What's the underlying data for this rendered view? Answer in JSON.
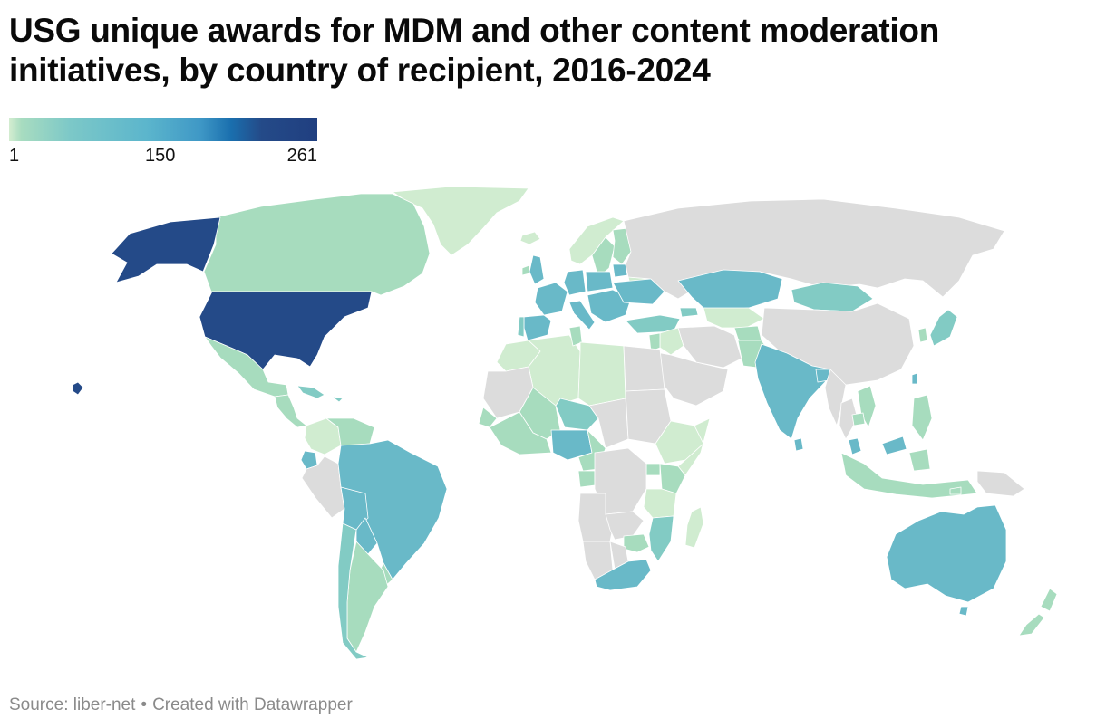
{
  "chart_data": {
    "type": "choropleth",
    "title": "USG unique awards for MDM and other content moderation initiatives, by country of recipient, 2016-2024",
    "legend": {
      "min": "1",
      "mid": "150",
      "max": "261",
      "min_value": 1,
      "mid_value": 150,
      "max_value": 261
    },
    "colors": {
      "no_data": "#dcdcdc",
      "very_low": "#d0ecd0",
      "low": "#a7dcbe",
      "low_mid": "#82cbc4",
      "mid": "#69b9c8",
      "high": "#244a88"
    },
    "regions": [
      {
        "name": "United States",
        "level": "high"
      },
      {
        "name": "Alaska",
        "level": "high"
      },
      {
        "name": "Hawaii",
        "level": "high"
      },
      {
        "name": "Canada",
        "level": "low"
      },
      {
        "name": "Greenland",
        "level": "very_low"
      },
      {
        "name": "Mexico",
        "level": "low"
      },
      {
        "name": "Central America",
        "level": "low"
      },
      {
        "name": "Caribbean",
        "level": "low_mid"
      },
      {
        "name": "Colombia",
        "level": "very_low"
      },
      {
        "name": "Venezuela",
        "level": "low"
      },
      {
        "name": "Ecuador",
        "level": "mid"
      },
      {
        "name": "Peru",
        "level": "no_data"
      },
      {
        "name": "Brazil",
        "level": "mid"
      },
      {
        "name": "Bolivia",
        "level": "mid"
      },
      {
        "name": "Paraguay",
        "level": "mid"
      },
      {
        "name": "Uruguay",
        "level": "low"
      },
      {
        "name": "Argentina",
        "level": "low"
      },
      {
        "name": "Chile",
        "level": "low_mid"
      },
      {
        "name": "Iceland",
        "level": "very_low"
      },
      {
        "name": "Norway",
        "level": "very_low"
      },
      {
        "name": "Sweden",
        "level": "low"
      },
      {
        "name": "Finland",
        "level": "low"
      },
      {
        "name": "Baltics",
        "level": "mid"
      },
      {
        "name": "United Kingdom",
        "level": "mid"
      },
      {
        "name": "Ireland",
        "level": "low"
      },
      {
        "name": "France",
        "level": "mid"
      },
      {
        "name": "Spain",
        "level": "mid"
      },
      {
        "name": "Portugal",
        "level": "low_mid"
      },
      {
        "name": "Germany",
        "level": "mid"
      },
      {
        "name": "Poland",
        "level": "mid"
      },
      {
        "name": "Italy",
        "level": "mid"
      },
      {
        "name": "Ukraine",
        "level": "mid"
      },
      {
        "name": "Balkans",
        "level": "mid"
      },
      {
        "name": "Belarus",
        "level": "very_low"
      },
      {
        "name": "Turkey",
        "level": "low_mid"
      },
      {
        "name": "Georgia",
        "level": "low_mid"
      },
      {
        "name": "Russia",
        "level": "no_data"
      },
      {
        "name": "Kazakhstan",
        "level": "mid"
      },
      {
        "name": "Mongolia",
        "level": "low_mid"
      },
      {
        "name": "Central Asia",
        "level": "very_low"
      },
      {
        "name": "China",
        "level": "no_data"
      },
      {
        "name": "Japan",
        "level": "low_mid"
      },
      {
        "name": "South Korea",
        "level": "low"
      },
      {
        "name": "Taiwan",
        "level": "mid"
      },
      {
        "name": "Iraq",
        "level": "very_low"
      },
      {
        "name": "Jordan/Lebanon",
        "level": "low"
      },
      {
        "name": "Saudi Arabia",
        "level": "no_data"
      },
      {
        "name": "Iran",
        "level": "no_data"
      },
      {
        "name": "Pakistan",
        "level": "low"
      },
      {
        "name": "Afghanistan",
        "level": "low"
      },
      {
        "name": "India",
        "level": "mid"
      },
      {
        "name": "Bangladesh",
        "level": "mid"
      },
      {
        "name": "Sri Lanka",
        "level": "mid"
      },
      {
        "name": "Myanmar",
        "level": "no_data"
      },
      {
        "name": "Thailand",
        "level": "no_data"
      },
      {
        "name": "Vietnam",
        "level": "low"
      },
      {
        "name": "Cambodia",
        "level": "low"
      },
      {
        "name": "Philippines",
        "level": "low"
      },
      {
        "name": "Malaysia",
        "level": "mid"
      },
      {
        "name": "Indonesia",
        "level": "low"
      },
      {
        "name": "Papua New Guinea",
        "level": "no_data"
      },
      {
        "name": "Timor-Leste",
        "level": "low"
      },
      {
        "name": "Australia",
        "level": "mid"
      },
      {
        "name": "New Zealand",
        "level": "low"
      },
      {
        "name": "Morocco",
        "level": "very_low"
      },
      {
        "name": "Algeria",
        "level": "very_low"
      },
      {
        "name": "Libya",
        "level": "very_low"
      },
      {
        "name": "Tunisia",
        "level": "low"
      },
      {
        "name": "Egypt",
        "level": "no_data"
      },
      {
        "name": "Mauritania",
        "level": "no_data"
      },
      {
        "name": "Mali",
        "level": "low"
      },
      {
        "name": "Niger",
        "level": "low_mid"
      },
      {
        "name": "Chad",
        "level": "no_data"
      },
      {
        "name": "Sudan",
        "level": "no_data"
      },
      {
        "name": "Senegal",
        "level": "low"
      },
      {
        "name": "West Africa coast",
        "level": "low"
      },
      {
        "name": "Nigeria",
        "level": "mid"
      },
      {
        "name": "Cameroon",
        "level": "low"
      },
      {
        "name": "Ethiopia",
        "level": "very_low"
      },
      {
        "name": "Somalia",
        "level": "very_low"
      },
      {
        "name": "Kenya",
        "level": "low"
      },
      {
        "name": "Uganda",
        "level": "low"
      },
      {
        "name": "DR Congo",
        "level": "no_data"
      },
      {
        "name": "Gabon",
        "level": "low"
      },
      {
        "name": "Tanzania",
        "level": "very_low"
      },
      {
        "name": "Angola",
        "level": "no_data"
      },
      {
        "name": "Zambia",
        "level": "no_data"
      },
      {
        "name": "Zimbabwe",
        "level": "low"
      },
      {
        "name": "Mozambique",
        "level": "low_mid"
      },
      {
        "name": "Madagascar",
        "level": "very_low"
      },
      {
        "name": "Namibia",
        "level": "no_data"
      },
      {
        "name": "Botswana",
        "level": "no_data"
      },
      {
        "name": "South Africa",
        "level": "mid"
      }
    ]
  },
  "source": {
    "label": "Source: liber-net",
    "separator": "•",
    "credit": "Created with Datawrapper"
  }
}
